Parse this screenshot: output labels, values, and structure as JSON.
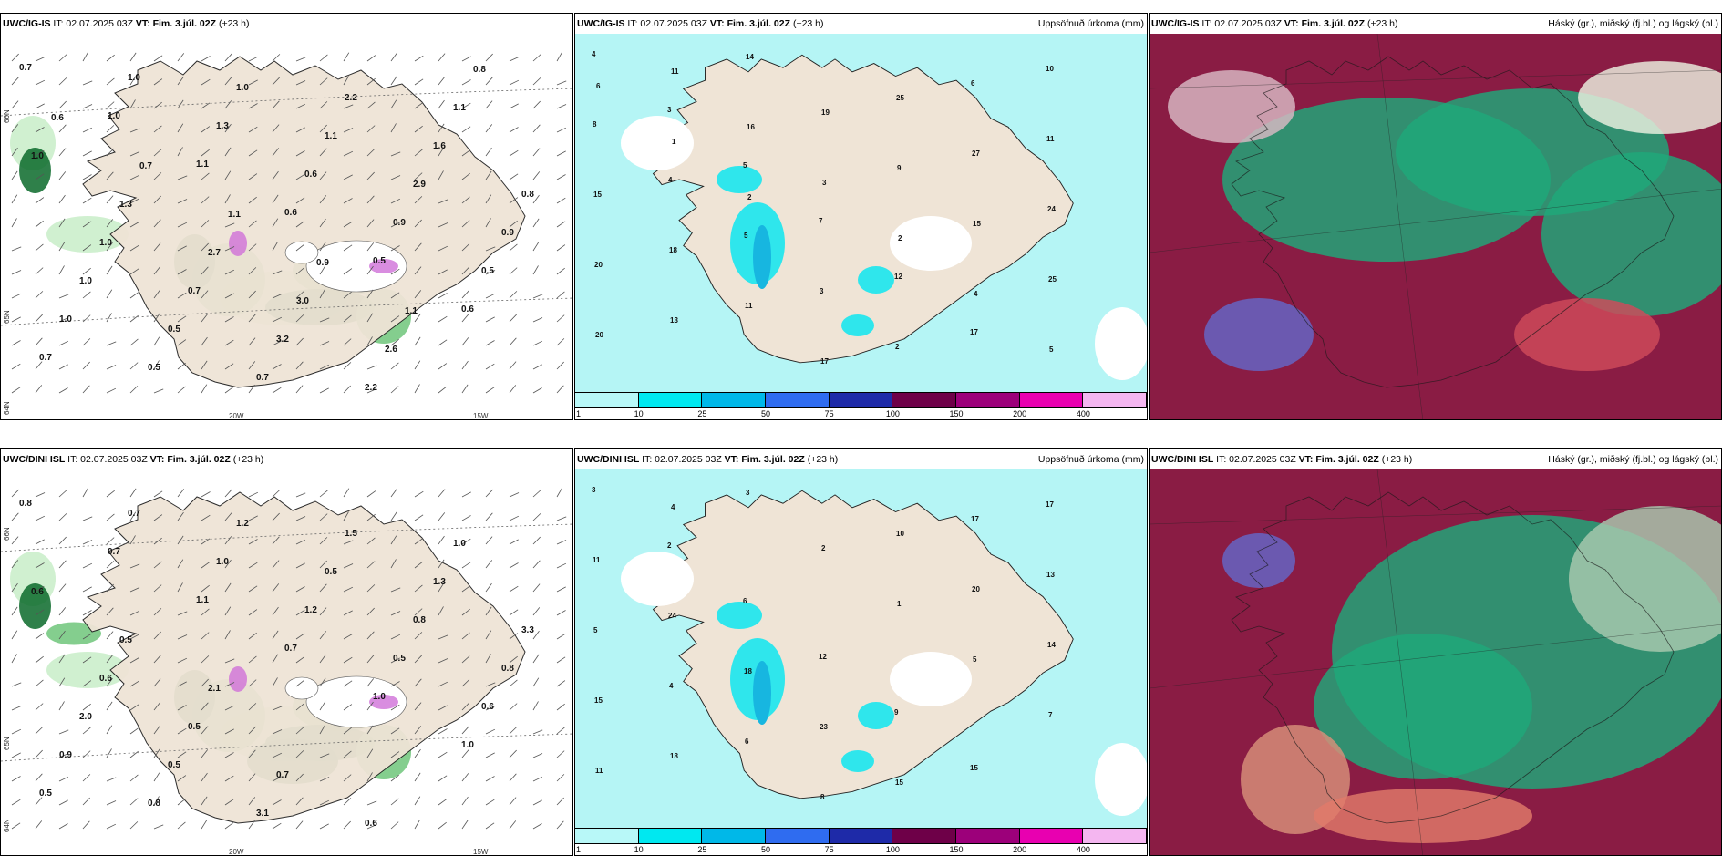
{
  "rows": [
    {
      "model": "UWC/IG-IS",
      "panels": [
        {
          "id": "ig-wind",
          "it_label": "IT: 02.07.2025 03Z",
          "vt_label": "VT: Fim. 3.júl. 02Z",
          "lead": "(+23 h)",
          "right_title": "",
          "lat_labels": [
            "66N",
            "65N",
            "64N"
          ],
          "lon_labels": [
            "20W",
            "15W"
          ],
          "values": [
            "0.7",
            "1.0",
            "1.1",
            "0.6",
            "0.5",
            "0.6",
            "0.7",
            "1.0",
            "1.3",
            "0.6",
            "0.9",
            "0.5",
            "1.0",
            "0.5",
            "1.0",
            "1.1",
            "2.9",
            "0.9",
            "1.0",
            "0.5",
            "0.7",
            "2.2",
            "1.6",
            "0.8",
            "1.0",
            "0.7",
            "3.2",
            "2.2",
            "1.1",
            "1.0",
            "1.3",
            "2.7",
            "3.0",
            "2.6",
            "0.8",
            "0.6",
            "0.7",
            "1.1",
            "0.9",
            "1.1"
          ]
        },
        {
          "id": "ig-precip",
          "it_label": "IT: 02.07.2025 03Z",
          "vt_label": "VT: Fim. 3.júl. 02Z",
          "lead": "(+23 h)",
          "right_title": "Uppsöfnuð úrkoma (mm)",
          "colorbar": [
            "1",
            "10",
            "25",
            "50",
            "75",
            "100",
            "150",
            "200",
            "400"
          ],
          "values": [
            "4",
            "3",
            "5",
            "7",
            "12",
            "17",
            "10",
            "8",
            "4",
            "5",
            "3",
            "2",
            "6",
            "11",
            "15",
            "18",
            "11",
            "17",
            "25",
            "27",
            "24",
            "20",
            "13",
            "14",
            "19",
            "9",
            "15",
            "25",
            "20",
            "11",
            "16",
            "3",
            "2",
            "4",
            "5",
            "6",
            "1",
            "2"
          ]
        },
        {
          "id": "ig-cloud",
          "it_label": "IT: 02.07.2025 03Z",
          "vt_label": "VT: Fim. 3.júl. 02Z",
          "lead": "(+23 h)",
          "right_title": "Háský (gr.), miðský (fj.bl.) og lágský (bl.)"
        }
      ]
    },
    {
      "model": "UWC/DINI ISL",
      "panels": [
        {
          "id": "dini-wind",
          "it_label": "IT: 02.07.2025 03Z",
          "vt_label": "VT: Fim. 3.júl. 02Z",
          "lead": "(+23 h)",
          "right_title": "",
          "lat_labels": [
            "66N",
            "65N",
            "64N"
          ],
          "lon_labels": [
            "20W",
            "15W"
          ],
          "values": [
            "0.8",
            "0.7",
            "1.1",
            "0.7",
            "1.0",
            "1.0",
            "0.5",
            "0.7",
            "1.0",
            "1.2",
            "0.5",
            "0.6",
            "0.9",
            "0.8",
            "1.2",
            "0.5",
            "0.8",
            "0.8",
            "2.0",
            "0.5",
            "3.1",
            "1.5",
            "1.3",
            "3.3",
            "0.6",
            "0.5",
            "0.7",
            "0.6",
            "1.0",
            "0.6",
            "0.5",
            "2.1"
          ]
        },
        {
          "id": "dini-precip",
          "it_label": "IT: 02.07.2025 03Z",
          "vt_label": "VT: Fim. 3.júl. 02Z",
          "lead": "(+23 h)",
          "right_title": "Uppsöfnuð úrkoma (mm)",
          "colorbar": [
            "1",
            "10",
            "25",
            "50",
            "75",
            "100",
            "150",
            "200",
            "400"
          ],
          "values": [
            "3",
            "2",
            "6",
            "12",
            "9",
            "15",
            "17",
            "11",
            "24",
            "18",
            "23",
            "15",
            "17",
            "13",
            "5",
            "4",
            "6",
            "8",
            "10",
            "20",
            "14",
            "15",
            "18",
            "3",
            "2",
            "1",
            "5",
            "7",
            "11",
            "4"
          ]
        },
        {
          "id": "dini-cloud",
          "it_label": "IT: 02.07.2025 03Z",
          "vt_label": "VT: Fim. 3.júl. 02Z",
          "lead": "(+23 h)",
          "right_title": "Háský (gr.), miðský (fj.bl.) og lágský (bl.)"
        }
      ]
    }
  ],
  "colors": {
    "land": "#efe4d6",
    "precip_light": "#b5f5f5",
    "precip_mid": "#2fe6ec",
    "precip_strong": "#17b6e0",
    "wind_light": "#c8edc8",
    "wind_mid": "#6fc67a",
    "wind_dark": "#0b6a2a",
    "wind_magenta": "#d070d8",
    "cloud_high": "#8a1c44",
    "cloud_mid": "#6467c8",
    "cloud_low": "#1ea87a",
    "colorbar": [
      "#b8f8f8",
      "#00e8f0",
      "#00b8e8",
      "#2f6cf0",
      "#1e2aa8",
      "#6e0048",
      "#9c007a",
      "#e800b0",
      "#f4b6f0"
    ]
  }
}
